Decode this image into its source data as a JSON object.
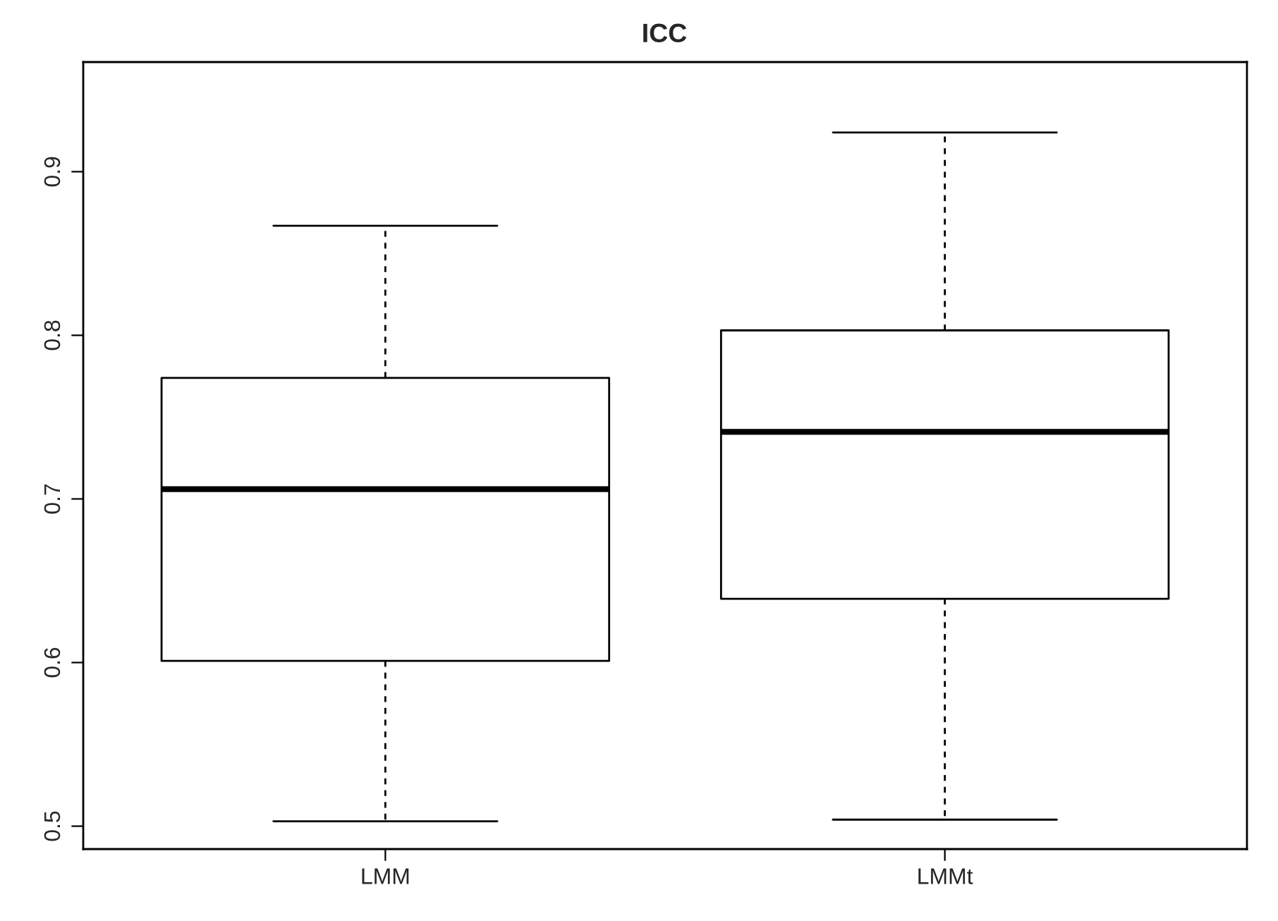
{
  "chart_data": {
    "type": "box",
    "title": "ICC",
    "categories": [
      "LMM",
      "LMMt"
    ],
    "boxes": [
      {
        "low": 0.503,
        "q1": 0.601,
        "median": 0.706,
        "q3": 0.774,
        "high": 0.867
      },
      {
        "low": 0.504,
        "q1": 0.639,
        "median": 0.741,
        "q3": 0.803,
        "high": 0.924
      }
    ],
    "ylim": [
      0.486,
      0.967
    ],
    "yticks": [
      0.5,
      0.6,
      0.7,
      0.8,
      0.9
    ],
    "grid": false
  }
}
